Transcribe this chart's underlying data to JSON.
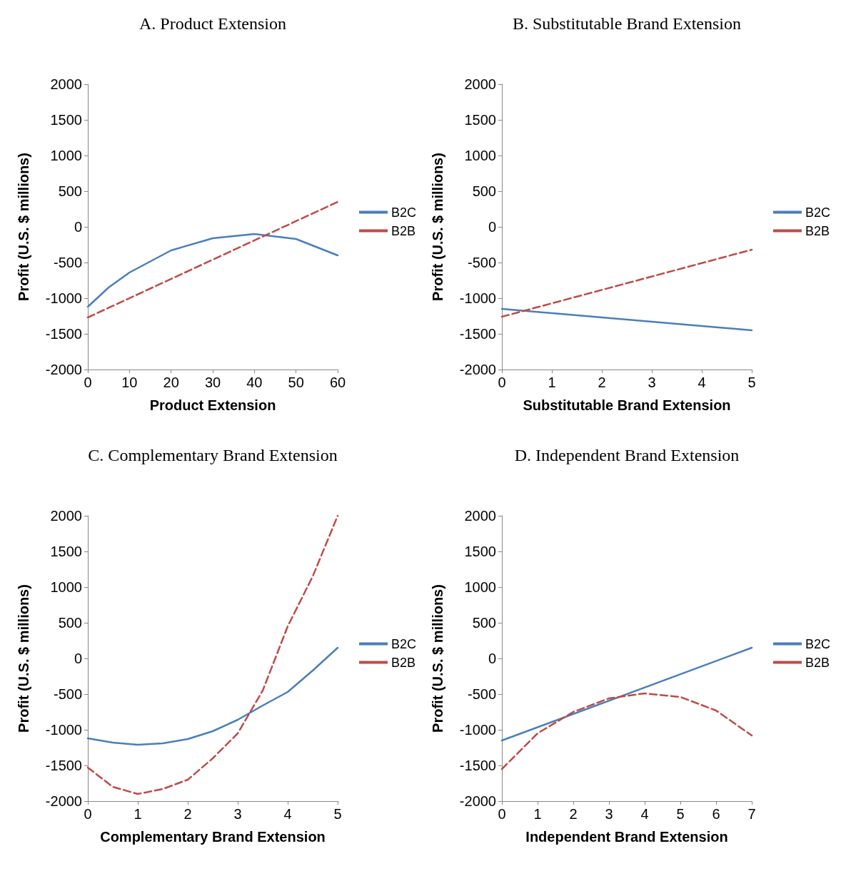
{
  "chart_data": [
    {
      "type": "line",
      "title": "A. Product Extension",
      "xlabel": "Product Extension",
      "ylabel": "Profit (U.S. $ millions)",
      "xlim": [
        0,
        60
      ],
      "xticks": [
        0,
        10,
        20,
        30,
        40,
        50,
        60
      ],
      "ylim": [
        -2000,
        2000
      ],
      "yticks": [
        -2000,
        -1500,
        -1000,
        -500,
        0,
        500,
        1000,
        1500,
        2000
      ],
      "legend": "right",
      "series": [
        {
          "name": "B2C",
          "color": "#4a7ebb",
          "line_style": "solid",
          "x": [
            0,
            5,
            10,
            20,
            30,
            40,
            50,
            60
          ],
          "values": [
            -1120,
            -850,
            -640,
            -330,
            -160,
            -100,
            -170,
            -400
          ]
        },
        {
          "name": "B2B",
          "color": "#be4b48",
          "line_style": "dashed",
          "x": [
            0,
            60
          ],
          "values": [
            -1270,
            350
          ]
        }
      ]
    },
    {
      "type": "line",
      "title": "B. Substitutable Brand Extension",
      "xlabel": "Substitutable Brand Extension",
      "ylabel": "Profit (U.S. $ millions)",
      "xlim": [
        0,
        5
      ],
      "xticks": [
        0,
        1,
        2,
        3,
        4,
        5
      ],
      "ylim": [
        -2000,
        2000
      ],
      "yticks": [
        -2000,
        -1500,
        -1000,
        -500,
        0,
        500,
        1000,
        1500,
        2000
      ],
      "legend": "right",
      "series": [
        {
          "name": "B2C",
          "color": "#4a7ebb",
          "line_style": "solid",
          "x": [
            0,
            5
          ],
          "values": [
            -1150,
            -1450
          ]
        },
        {
          "name": "B2B",
          "color": "#be4b48",
          "line_style": "dashed",
          "x": [
            0,
            5
          ],
          "values": [
            -1260,
            -320
          ]
        }
      ]
    },
    {
      "type": "line",
      "title": "C. Complementary Brand Extension",
      "xlabel": "Complementary Brand Extension",
      "ylabel": "Profit (U.S. $ millions)",
      "xlim": [
        0,
        5
      ],
      "xticks": [
        0,
        1,
        2,
        3,
        4,
        5
      ],
      "ylim": [
        -2000,
        2000
      ],
      "yticks": [
        -2000,
        -1500,
        -1000,
        -500,
        0,
        500,
        1000,
        1500,
        2000
      ],
      "legend": "right",
      "series": [
        {
          "name": "B2C",
          "color": "#4a7ebb",
          "line_style": "solid",
          "x": [
            0,
            0.5,
            1,
            1.5,
            2,
            2.5,
            3,
            3.5,
            4,
            4.5,
            5
          ],
          "values": [
            -1120,
            -1180,
            -1210,
            -1190,
            -1130,
            -1020,
            -860,
            -660,
            -470,
            -170,
            150
          ]
        },
        {
          "name": "B2B",
          "color": "#be4b48",
          "line_style": "dashed",
          "x": [
            0,
            0.5,
            1,
            1.5,
            2,
            2.5,
            3,
            3.5,
            4,
            4.5,
            5
          ],
          "values": [
            -1530,
            -1800,
            -1900,
            -1830,
            -1700,
            -1400,
            -1050,
            -450,
            450,
            1150,
            2000
          ]
        }
      ]
    },
    {
      "type": "line",
      "title": "D. Independent Brand Extension",
      "xlabel": "Independent Brand Extension",
      "ylabel": "Profit (U.S. $ millions)",
      "xlim": [
        0,
        7
      ],
      "xticks": [
        0,
        1,
        2,
        3,
        4,
        5,
        6,
        7
      ],
      "ylim": [
        -2000,
        2000
      ],
      "yticks": [
        -2000,
        -1500,
        -1000,
        -500,
        0,
        500,
        1000,
        1500,
        2000
      ],
      "legend": "right",
      "series": [
        {
          "name": "B2C",
          "color": "#4a7ebb",
          "line_style": "solid",
          "x": [
            0,
            7
          ],
          "values": [
            -1150,
            150
          ]
        },
        {
          "name": "B2B",
          "color": "#be4b48",
          "line_style": "dashed",
          "x": [
            0,
            1,
            2,
            3,
            4,
            5,
            6,
            7
          ],
          "values": [
            -1550,
            -1050,
            -750,
            -560,
            -490,
            -540,
            -730,
            -1080
          ]
        }
      ]
    }
  ]
}
